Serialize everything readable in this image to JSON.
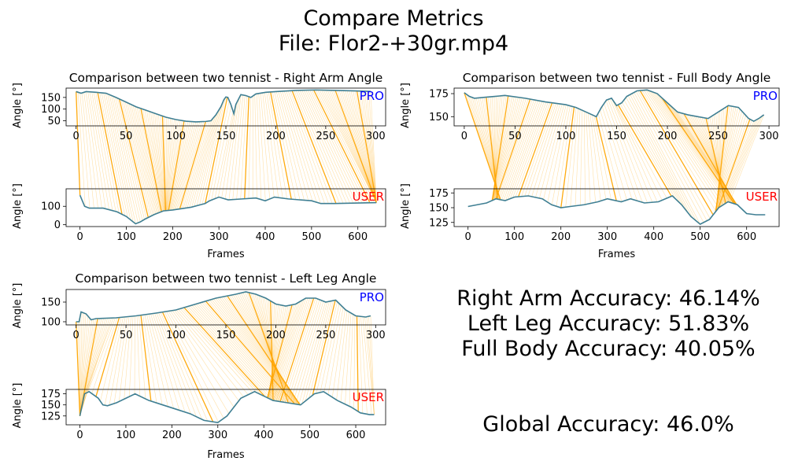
{
  "figure": {
    "title_line1": "Compare Metrics",
    "title_line2": "File: Flor2-+30gr.mp4"
  },
  "accuracy": {
    "right_arm": "Right Arm Accuracy: 46.14%",
    "left_leg": "Left Leg Accuracy: 51.83%",
    "full_body": "Full Body Accuracy: 40.05%",
    "global": "Global Accuracy: 46.0%"
  },
  "chart_data": [
    {
      "type": "line",
      "title": "Comparison between two tennist - Right Arm Angle",
      "xlabel": "Frames",
      "ylabel": "Angle [°]",
      "line_color": "#3f7f93",
      "match_color": "#ffa500",
      "pro": {
        "label": "PRO",
        "label_color": "#0000ff",
        "xlim": [
          -10,
          310
        ],
        "ylim": [
          28,
          190
        ],
        "xticks": [
          0,
          50,
          100,
          150,
          200,
          250,
          300
        ],
        "yticks": [
          50,
          100,
          150
        ],
        "x": [
          0,
          5,
          10,
          20,
          30,
          40,
          50,
          60,
          70,
          80,
          90,
          100,
          110,
          120,
          130,
          135,
          140,
          145,
          148,
          150,
          152,
          155,
          158,
          160,
          165,
          170,
          175,
          180,
          190,
          200,
          220,
          240,
          260,
          280,
          295
        ],
        "y": [
          175,
          168,
          175,
          172,
          168,
          150,
          130,
          110,
          95,
          80,
          65,
          55,
          48,
          45,
          47,
          50,
          75,
          110,
          140,
          152,
          150,
          120,
          80,
          120,
          162,
          158,
          150,
          165,
          172,
          175,
          180,
          182,
          180,
          178,
          176
        ]
      },
      "user": {
        "label": "USER",
        "label_color": "#ff0000",
        "xlim": [
          -30,
          660
        ],
        "ylim": [
          -10,
          195
        ],
        "xticks": [
          0,
          100,
          200,
          300,
          400,
          500,
          600
        ],
        "yticks": [
          0,
          100
        ],
        "x": [
          0,
          10,
          20,
          50,
          80,
          100,
          120,
          130,
          140,
          160,
          180,
          200,
          240,
          270,
          280,
          290,
          300,
          320,
          350,
          380,
          400,
          420,
          450,
          500,
          520,
          550,
          600,
          640
        ],
        "y": [
          160,
          100,
          90,
          90,
          70,
          45,
          5,
          15,
          30,
          55,
          75,
          80,
          95,
          115,
          130,
          140,
          150,
          135,
          140,
          145,
          130,
          150,
          140,
          130,
          115,
          115,
          118,
          120
        ]
      }
    },
    {
      "type": "line",
      "title": "Comparison between two tennist - Full Body Angle",
      "xlabel": "Frames",
      "ylabel": "Angle [°]",
      "line_color": "#3f7f93",
      "match_color": "#ffa500",
      "pro": {
        "label": "PRO",
        "label_color": "#0000ff",
        "xlim": [
          -10,
          310
        ],
        "ylim": [
          140,
          181
        ],
        "xticks": [
          0,
          50,
          100,
          150,
          200,
          250,
          300
        ],
        "yticks": [
          150,
          175
        ],
        "x": [
          0,
          5,
          10,
          20,
          30,
          40,
          60,
          80,
          100,
          110,
          120,
          130,
          135,
          140,
          145,
          150,
          155,
          160,
          170,
          180,
          190,
          200,
          210,
          220,
          230,
          240,
          250,
          260,
          270,
          280,
          285,
          290,
          295
        ],
        "y": [
          176,
          172,
          170,
          171,
          172,
          173,
          170,
          166,
          163,
          160,
          155,
          150,
          160,
          168,
          170,
          162,
          165,
          172,
          178,
          179,
          175,
          165,
          155,
          152,
          150,
          148,
          155,
          162,
          160,
          148,
          145,
          148,
          152
        ]
      },
      "user": {
        "label": "USER",
        "label_color": "#ff0000",
        "xlim": [
          -30,
          670
        ],
        "ylim": [
          118,
          182
        ],
        "xticks": [
          0,
          100,
          200,
          300,
          400,
          500,
          600
        ],
        "yticks": [
          125,
          150,
          175
        ],
        "x": [
          0,
          20,
          40,
          60,
          80,
          100,
          130,
          160,
          180,
          200,
          220,
          250,
          280,
          300,
          330,
          350,
          380,
          410,
          440,
          460,
          480,
          500,
          520,
          540,
          560,
          580,
          600,
          620,
          640
        ],
        "y": [
          152,
          155,
          158,
          165,
          162,
          168,
          170,
          165,
          155,
          150,
          152,
          155,
          160,
          165,
          160,
          165,
          158,
          160,
          170,
          155,
          135,
          122,
          130,
          150,
          160,
          155,
          140,
          138,
          138
        ]
      }
    },
    {
      "type": "line",
      "title": "Comparison between two tennist - Left Leg Angle",
      "xlabel": "Frames",
      "ylabel": "Angle [°]",
      "line_color": "#3f7f93",
      "match_color": "#ffa500",
      "pro": {
        "label": "PRO",
        "label_color": "#0000ff",
        "xlim": [
          -10,
          310
        ],
        "ylim": [
          92,
          182
        ],
        "xticks": [
          0,
          50,
          100,
          150,
          200,
          250,
          300
        ],
        "yticks": [
          100,
          150
        ],
        "x": [
          0,
          3,
          5,
          10,
          15,
          20,
          40,
          60,
          80,
          100,
          120,
          140,
          150,
          160,
          170,
          180,
          190,
          200,
          210,
          220,
          230,
          240,
          250,
          260,
          270,
          280,
          290,
          295
        ],
        "y": [
          100,
          100,
          125,
          120,
          105,
          108,
          110,
          115,
          122,
          130,
          145,
          160,
          165,
          170,
          176,
          170,
          160,
          145,
          140,
          145,
          160,
          160,
          150,
          155,
          130,
          115,
          112,
          115
        ]
      },
      "user": {
        "label": "USER",
        "label_color": "#ff0000",
        "xlim": [
          -30,
          665
        ],
        "ylim": [
          105,
          185
        ],
        "xticks": [
          0,
          100,
          200,
          300,
          400,
          500,
          600
        ],
        "yticks": [
          125,
          150,
          175
        ],
        "x": [
          0,
          10,
          20,
          40,
          50,
          60,
          80,
          100,
          120,
          150,
          180,
          210,
          240,
          270,
          300,
          320,
          350,
          380,
          400,
          420,
          450,
          480,
          510,
          530,
          560,
          590,
          610,
          630,
          640
        ],
        "y": [
          125,
          175,
          180,
          165,
          150,
          148,
          155,
          165,
          175,
          160,
          150,
          140,
          130,
          115,
          110,
          125,
          165,
          180,
          170,
          160,
          155,
          150,
          175,
          180,
          160,
          145,
          132,
          128,
          128
        ]
      }
    }
  ]
}
